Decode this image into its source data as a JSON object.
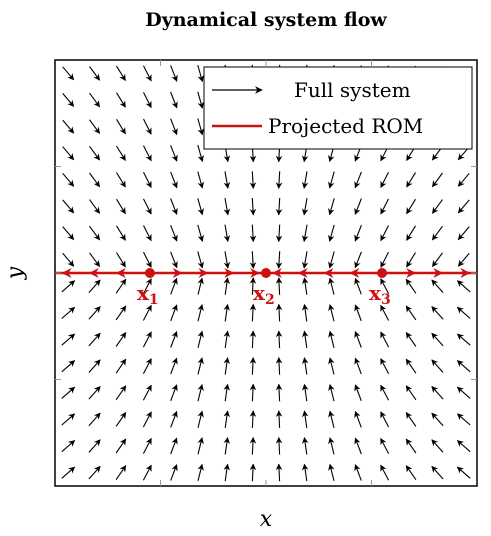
{
  "chart_data": {
    "type": "quiver",
    "title": "Dynamical system flow",
    "xlabel": "x",
    "ylabel": "y",
    "xlim": [
      -1,
      1
    ],
    "ylim": [
      -1,
      1
    ],
    "grid": false,
    "legend_placement": "top-right",
    "series": [
      {
        "name": "Full system",
        "kind": "vector-field",
        "color": "#000000"
      },
      {
        "name": "Projected ROM",
        "kind": "line",
        "color": "#cc1111",
        "y": 0
      }
    ],
    "fixed_points": [
      {
        "label": "x",
        "subscript": "1",
        "x": -0.55,
        "y": 0
      },
      {
        "label": "x",
        "subscript": "2",
        "x": 0.0,
        "y": 0
      },
      {
        "label": "x",
        "subscript": "3",
        "x": 0.55,
        "y": 0
      }
    ],
    "rom_flow": [
      {
        "from": -0.55,
        "to": -1.0
      },
      {
        "from": -0.55,
        "to": 0.0
      },
      {
        "from": 0.55,
        "to": 0.0
      },
      {
        "from": 0.55,
        "to": 1.0
      }
    ]
  },
  "colors": {
    "accent": "#cc1111",
    "arrow": "#000000"
  }
}
